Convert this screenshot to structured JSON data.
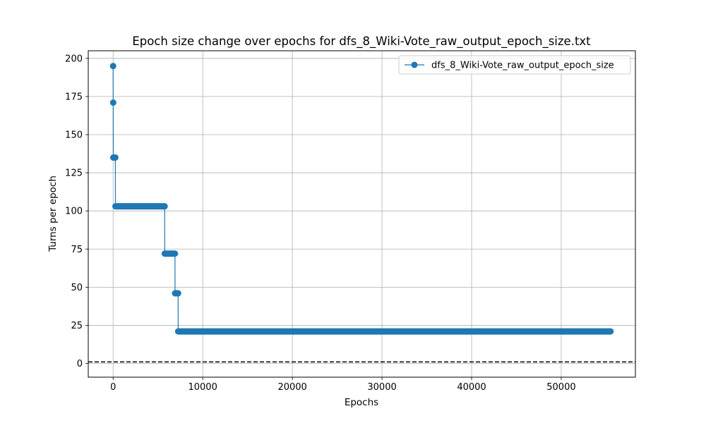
{
  "chart_data": {
    "type": "line",
    "title": "Epoch size change over epochs for dfs_8_Wiki-Vote_raw_output_epoch_size.txt",
    "xlabel": "Epochs",
    "ylabel": "Turns per epoch",
    "xlim": [
      -2775,
      58275
    ],
    "ylim": [
      -9,
      205
    ],
    "xticks": [
      0,
      10000,
      20000,
      30000,
      40000,
      50000
    ],
    "xtick_labels": [
      "0",
      "10000",
      "20000",
      "30000",
      "40000",
      "50000"
    ],
    "yticks": [
      0,
      25,
      50,
      75,
      100,
      125,
      150,
      175,
      200
    ],
    "ytick_labels": [
      "0",
      "25",
      "50",
      "75",
      "100",
      "125",
      "150",
      "175",
      "200"
    ],
    "grid": true,
    "legend_position": "top-right",
    "series": [
      {
        "name": "dfs_8_Wiki-Vote_raw_output_epoch_size",
        "color": "#1f77b4",
        "marker": "circle",
        "steps": [
          {
            "x_start": 0,
            "x_end": 0,
            "y": 195
          },
          {
            "x_start": 10,
            "x_end": 10,
            "y": 171
          },
          {
            "x_start": 20,
            "x_end": 250,
            "y": 135
          },
          {
            "x_start": 260,
            "x_end": 5750,
            "y": 103
          },
          {
            "x_start": 5760,
            "x_end": 6900,
            "y": 72
          },
          {
            "x_start": 6910,
            "x_end": 7250,
            "y": 46
          },
          {
            "x_start": 7260,
            "x_end": 55500,
            "y": 21
          }
        ]
      }
    ],
    "reference_line": {
      "y": 1,
      "style": "dashed",
      "color": "#000000"
    }
  }
}
